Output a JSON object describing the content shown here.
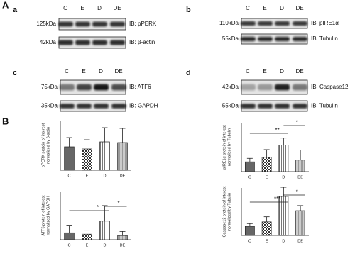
{
  "figure": {
    "panel_A": "A",
    "panel_B": "B"
  },
  "blots": [
    {
      "panel": "a",
      "lanes": [
        "C",
        "E",
        "D",
        "DE"
      ],
      "rows": [
        {
          "kda": "125kDa",
          "ib": "IB: pPERK"
        },
        {
          "kda": "42kDa",
          "ib": "IB: β-actin"
        }
      ]
    },
    {
      "panel": "b",
      "lanes": [
        "C",
        "E",
        "D",
        "DE"
      ],
      "rows": [
        {
          "kda": "110kDa",
          "ib": "IB: pIRE1α"
        },
        {
          "kda": "55kDa",
          "ib": "IB: Tubulin"
        }
      ]
    },
    {
      "panel": "c",
      "lanes": [
        "C",
        "E",
        "D",
        "DE"
      ],
      "rows": [
        {
          "kda": "75kDa",
          "ib": "IB: ATF6"
        },
        {
          "kda": "35kDa",
          "ib": "IB: GAPDH"
        }
      ]
    },
    {
      "panel": "d",
      "lanes": [
        "C",
        "E",
        "D",
        "DE"
      ],
      "rows": [
        {
          "kda": "42kDa",
          "ib": "IB: Caspase12"
        },
        {
          "kda": "55kDa",
          "ib": "IB: Tubulin"
        }
      ]
    }
  ],
  "chart_data": [
    {
      "type": "bar",
      "ylabel": [
        "pPERK protein of interest",
        "normalized by β-actin"
      ],
      "categories": [
        "C",
        "E",
        "D",
        "DE"
      ],
      "values": [
        0.66,
        0.6,
        0.8,
        0.78
      ],
      "errors": [
        0.26,
        0.26,
        0.4,
        0.4
      ],
      "ylim": [
        0,
        1.4
      ],
      "annotations": []
    },
    {
      "type": "bar",
      "ylabel": [
        "pIRE1α protein of interest",
        "normalized by Tubulin"
      ],
      "categories": [
        "C",
        "E",
        "D",
        "DE"
      ],
      "values": [
        0.28,
        0.41,
        0.76,
        0.33
      ],
      "errors": [
        0.1,
        0.22,
        0.2,
        0.29
      ],
      "ylim": [
        0,
        1.4
      ],
      "annotations": [
        "**",
        "*"
      ]
    },
    {
      "type": "bar",
      "ylabel": [
        "ATF6 protein of interest",
        "normalized by GAPDH"
      ],
      "categories": [
        "C",
        "E",
        "D",
        "DE"
      ],
      "values": [
        0.2,
        0.16,
        0.54,
        0.12
      ],
      "errors": [
        0.22,
        0.1,
        0.45,
        0.12
      ],
      "ylim": [
        0,
        1.4
      ],
      "annotations": [
        "*",
        "*"
      ]
    },
    {
      "type": "bar",
      "ylabel": [
        "Caspase12 protein of interest",
        "normalized by Tubulin"
      ],
      "categories": [
        "C",
        "E",
        "D",
        "DE"
      ],
      "values": [
        0.27,
        0.4,
        1.15,
        0.73
      ],
      "errors": [
        0.08,
        0.15,
        0.27,
        0.15
      ],
      "ylim": [
        0,
        1.4
      ],
      "annotations": [
        "***",
        "*"
      ]
    }
  ]
}
